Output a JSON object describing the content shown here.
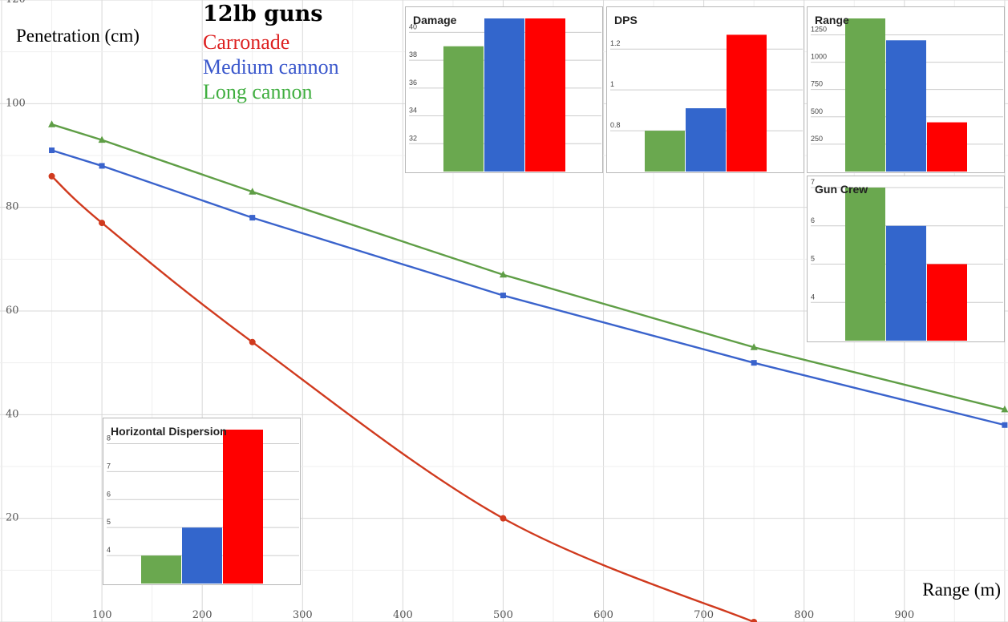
{
  "chart_data": [
    {
      "type": "line",
      "title": "12lb guns",
      "xlabel": "Range (m)",
      "ylabel": "Penetration (cm)",
      "xlim": [
        0,
        1000
      ],
      "ylim": [
        0,
        120
      ],
      "x_ticks": [
        100,
        200,
        300,
        400,
        500,
        600,
        700,
        800,
        900
      ],
      "y_ticks": [
        20,
        40,
        60,
        80,
        100,
        120
      ],
      "grid": true,
      "legend": "top-left",
      "series": [
        {
          "name": "Carronade",
          "color": "#d03a1e",
          "marker": "circle",
          "x": [
            50,
            100,
            250,
            500,
            750
          ],
          "y": [
            86,
            77,
            54,
            20,
            0
          ]
        },
        {
          "name": "Medium cannon",
          "color": "#3a63cc",
          "marker": "square",
          "x": [
            50,
            100,
            250,
            500,
            750,
            1000
          ],
          "y": [
            91,
            88,
            78,
            63,
            50,
            38
          ]
        },
        {
          "name": "Long cannon",
          "color": "#5f9e46",
          "marker": "triangle",
          "x": [
            50,
            100,
            250,
            500,
            750,
            1000
          ],
          "y": [
            96,
            93,
            83,
            67,
            53,
            41
          ]
        }
      ]
    },
    {
      "type": "bar",
      "title": "Damage",
      "categories": [
        "Long cannon",
        "Medium cannon",
        "Carronade"
      ],
      "values": [
        39,
        41,
        41
      ],
      "colors": [
        "#6aa84f",
        "#3366cc",
        "#ff0000"
      ],
      "ylim": [
        30,
        41
      ],
      "y_ticks": [
        32,
        34,
        36,
        38,
        40
      ]
    },
    {
      "type": "bar",
      "title": "DPS",
      "categories": [
        "Long cannon",
        "Medium cannon",
        "Carronade"
      ],
      "values": [
        0.8,
        0.91,
        1.27
      ],
      "colors": [
        "#6aa84f",
        "#3366cc",
        "#ff0000"
      ],
      "ylim": [
        0.6,
        1.35
      ],
      "y_ticks": [
        0.8,
        1,
        1.2
      ]
    },
    {
      "type": "bar",
      "title": "Range",
      "categories": [
        "Long cannon",
        "Medium cannon",
        "Carronade"
      ],
      "values": [
        1400,
        1200,
        450
      ],
      "colors": [
        "#6aa84f",
        "#3366cc",
        "#ff0000"
      ],
      "ylim": [
        0,
        1400
      ],
      "y_ticks": [
        250,
        500,
        750,
        1000,
        1250
      ]
    },
    {
      "type": "bar",
      "title": "Gun Crew",
      "categories": [
        "Long cannon",
        "Medium cannon",
        "Carronade"
      ],
      "values": [
        7,
        6,
        5
      ],
      "colors": [
        "#6aa84f",
        "#3366cc",
        "#ff0000"
      ],
      "ylim": [
        3,
        7
      ],
      "y_ticks": [
        4,
        5,
        6,
        7
      ]
    },
    {
      "type": "bar",
      "title": "Horizontal Dispersion",
      "categories": [
        "Long cannon",
        "Medium cannon",
        "Carronade"
      ],
      "values": [
        4,
        5,
        8.5
      ],
      "colors": [
        "#6aa84f",
        "#3366cc",
        "#ff0000"
      ],
      "ylim": [
        3,
        8.5
      ],
      "y_ticks": [
        4,
        5,
        6,
        7,
        8
      ]
    }
  ]
}
